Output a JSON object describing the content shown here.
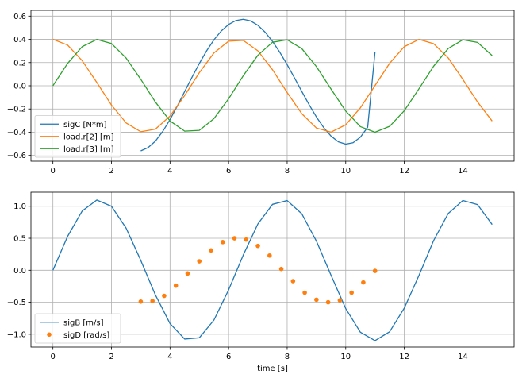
{
  "chart_data": [
    {
      "type": "line",
      "title": "",
      "xlabel": "",
      "ylabel": "",
      "xlim": [
        -0.75,
        15.75
      ],
      "ylim": [
        -0.65,
        0.65
      ],
      "xticks": [
        0,
        2,
        4,
        6,
        8,
        10,
        12,
        14
      ],
      "xtick_labels": [
        "0",
        "2",
        "4",
        "6",
        "8",
        "10",
        "12",
        "14"
      ],
      "yticks": [
        -0.6,
        -0.4,
        -0.2,
        0.0,
        0.2,
        0.4,
        0.6
      ],
      "ytick_labels": [
        "−0.6",
        "−0.4",
        "−0.2",
        "0.0",
        "0.2",
        "0.4",
        "0.6"
      ],
      "grid": true,
      "legend_position": "bottom-left",
      "series": [
        {
          "name": "sigC [N*m]",
          "color": "#1f77b4",
          "style": "line",
          "x": [
            3.0,
            3.25,
            3.5,
            3.75,
            4.0,
            4.25,
            4.5,
            4.75,
            5.0,
            5.25,
            5.5,
            5.75,
            6.0,
            6.25,
            6.5,
            6.75,
            7.0,
            7.25,
            7.5,
            7.75,
            8.0,
            8.25,
            8.5,
            8.75,
            9.0,
            9.25,
            9.5,
            9.75,
            10.0,
            10.25,
            10.5,
            10.75,
            11.0
          ],
          "y": [
            -0.561,
            -0.533,
            -0.477,
            -0.394,
            -0.291,
            -0.174,
            -0.049,
            0.073,
            0.192,
            0.301,
            0.396,
            0.472,
            0.528,
            0.562,
            0.573,
            0.559,
            0.521,
            0.461,
            0.382,
            0.288,
            0.182,
            0.068,
            -0.049,
            -0.163,
            -0.269,
            -0.361,
            -0.434,
            -0.483,
            -0.503,
            -0.491,
            -0.443,
            -0.357,
            0.29
          ]
        },
        {
          "name": "load.r[2] [m]",
          "color": "#ff7f0e",
          "style": "line",
          "x": [
            0,
            0.5,
            1,
            1.5,
            2,
            2.5,
            3,
            3.5,
            4,
            4.5,
            5,
            5.5,
            6,
            6.5,
            7,
            7.5,
            8,
            8.5,
            9,
            9.5,
            10,
            10.5,
            11,
            11.5,
            12,
            12.5,
            13,
            13.5,
            14,
            14.5,
            15
          ],
          "y": [
            0.4,
            0.351,
            0.216,
            0.028,
            -0.166,
            -0.32,
            -0.396,
            -0.374,
            -0.261,
            -0.084,
            0.113,
            0.283,
            0.384,
            0.391,
            0.301,
            0.138,
            -0.058,
            -0.241,
            -0.364,
            -0.399,
            -0.336,
            -0.19,
            0.002,
            0.194,
            0.337,
            0.399,
            0.363,
            0.24,
            0.055,
            -0.139,
            -0.304
          ]
        },
        {
          "name": "load.r[3] [m]",
          "color": "#2ca02c",
          "style": "line",
          "x": [
            0,
            0.5,
            1,
            1.5,
            2,
            2.5,
            3,
            3.5,
            4,
            4.5,
            5,
            5.5,
            6,
            6.5,
            7,
            7.5,
            8,
            8.5,
            9,
            9.5,
            10,
            10.5,
            11,
            11.5,
            12,
            12.5,
            13,
            13.5,
            14,
            14.5,
            15
          ],
          "y": [
            0,
            0.192,
            0.337,
            0.399,
            0.364,
            0.239,
            0.056,
            -0.14,
            -0.303,
            -0.391,
            -0.384,
            -0.283,
            -0.112,
            0.086,
            0.263,
            0.375,
            0.396,
            0.32,
            0.165,
            -0.029,
            -0.218,
            -0.352,
            -0.4,
            -0.349,
            -0.215,
            -0.026,
            0.168,
            0.321,
            0.396,
            0.374,
            0.26
          ]
        }
      ]
    },
    {
      "type": "line",
      "title": "",
      "xlabel": "time [s]",
      "ylabel": "",
      "xlim": [
        -0.75,
        15.75
      ],
      "ylim": [
        -1.2,
        1.22
      ],
      "xticks": [
        0,
        2,
        4,
        6,
        8,
        10,
        12,
        14
      ],
      "xtick_labels": [
        "0",
        "2",
        "4",
        "6",
        "8",
        "10",
        "12",
        "14"
      ],
      "yticks": [
        -1.0,
        -0.5,
        0.0,
        0.5,
        1.0
      ],
      "ytick_labels": [
        "−1.0",
        "−0.5",
        "0.0",
        "0.5",
        "1.0"
      ],
      "grid": true,
      "legend_position": "bottom-left",
      "series": [
        {
          "name": "sigB [m/s]",
          "color": "#1f77b4",
          "style": "line",
          "x": [
            0,
            0.5,
            1,
            1.5,
            2,
            2.5,
            3,
            3.5,
            4,
            4.5,
            5,
            5.5,
            6,
            6.5,
            7,
            7.5,
            8,
            8.5,
            9,
            9.5,
            10,
            10.5,
            11,
            11.5,
            12,
            12.5,
            13,
            13.5,
            14,
            14.5,
            15
          ],
          "y": [
            0,
            0.528,
            0.926,
            1.097,
            1.0,
            0.658,
            0.155,
            -0.385,
            -0.833,
            -1.075,
            -1.055,
            -0.778,
            -0.307,
            0.237,
            0.724,
            1.03,
            1.089,
            0.882,
            0.455,
            -0.08,
            -0.599,
            -0.968,
            -1.1,
            -0.96,
            -0.591,
            -0.081,
            0.463,
            0.887,
            1.09,
            1.026,
            0.715
          ]
        },
        {
          "name": "sigD [rad/s]",
          "color": "#ff7f0e",
          "style": "scatter",
          "x": [
            3.0,
            3.4,
            3.8,
            4.2,
            4.6,
            5.0,
            5.4,
            5.8,
            6.2,
            6.6,
            7.0,
            7.4,
            7.8,
            8.2,
            8.6,
            9.0,
            9.4,
            9.8,
            10.2,
            10.6,
            11.0
          ],
          "y": [
            -0.49,
            -0.48,
            -0.4,
            -0.24,
            -0.05,
            0.14,
            0.31,
            0.44,
            0.5,
            0.48,
            0.38,
            0.23,
            0.02,
            -0.17,
            -0.35,
            -0.46,
            -0.5,
            -0.47,
            -0.35,
            -0.19,
            -0.01
          ]
        }
      ]
    }
  ]
}
